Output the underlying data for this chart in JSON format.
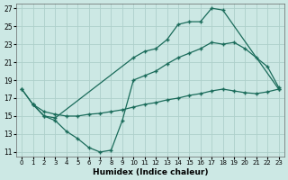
{
  "xlabel": "Humidex (Indice chaleur)",
  "xlim": [
    -0.5,
    23.5
  ],
  "ylim": [
    10.5,
    27.5
  ],
  "xticks": [
    0,
    1,
    2,
    3,
    4,
    5,
    6,
    7,
    8,
    9,
    10,
    11,
    12,
    13,
    14,
    15,
    16,
    17,
    18,
    19,
    20,
    21,
    22,
    23
  ],
  "yticks": [
    11,
    13,
    15,
    17,
    19,
    21,
    23,
    25,
    27
  ],
  "background_color": "#cce8e4",
  "grid_color": "#aecfca",
  "line_color": "#1a6b5a",
  "line1_x": [
    0,
    1,
    2,
    3,
    10,
    11,
    12,
    13,
    14,
    15,
    16,
    17,
    18,
    23
  ],
  "line1_y": [
    18.0,
    16.3,
    15.0,
    14.8,
    21.5,
    22.2,
    22.5,
    23.5,
    25.2,
    25.5,
    25.5,
    27.0,
    26.8,
    18.0
  ],
  "line2_x": [
    0,
    1,
    2,
    3,
    4,
    5,
    6,
    7,
    8,
    9,
    10,
    11,
    12,
    13,
    14,
    15,
    16,
    17,
    18,
    19,
    20,
    21,
    22,
    23
  ],
  "line2_y": [
    18.0,
    16.3,
    15.0,
    14.5,
    13.3,
    12.5,
    11.5,
    11.0,
    11.2,
    14.5,
    19.0,
    19.5,
    20.0,
    20.8,
    21.5,
    22.0,
    22.5,
    23.2,
    23.0,
    23.2,
    22.5,
    21.5,
    20.5,
    18.2
  ],
  "line3_x": [
    1,
    2,
    3,
    4,
    5,
    6,
    7,
    8,
    9,
    10,
    11,
    12,
    13,
    14,
    15,
    16,
    17,
    18,
    19,
    20,
    21,
    22,
    23
  ],
  "line3_y": [
    16.3,
    15.5,
    15.2,
    15.0,
    15.0,
    15.2,
    15.3,
    15.5,
    15.7,
    16.0,
    16.3,
    16.5,
    16.8,
    17.0,
    17.3,
    17.5,
    17.8,
    18.0,
    17.8,
    17.6,
    17.5,
    17.7,
    18.0
  ]
}
